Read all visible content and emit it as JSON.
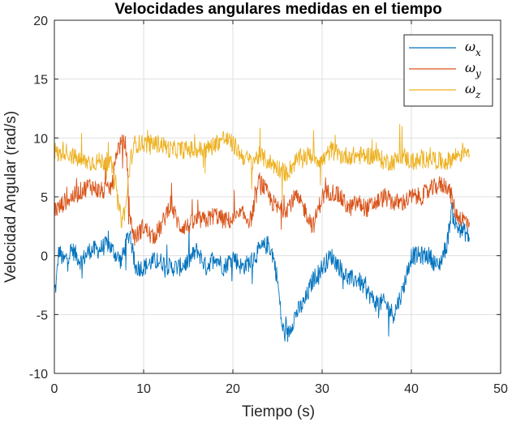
{
  "chart_data": {
    "type": "line",
    "title": "Velocidades angulares medidas en el tiempo",
    "xlabel": "Tiempo (s)",
    "ylabel": "Velocidad Angular (rad/s)",
    "xlim": [
      0,
      50
    ],
    "ylim": [
      -10,
      20
    ],
    "xticks": [
      0,
      10,
      20,
      30,
      40,
      50
    ],
    "yticks": [
      -10,
      -5,
      0,
      5,
      10,
      15,
      20
    ],
    "grid": true,
    "legend_position": "top-right",
    "series": [
      {
        "name": "ωx",
        "base": "ω",
        "sub": "x",
        "color": "#0072BD",
        "x": [
          0,
          0.2,
          0.5,
          1,
          2,
          3,
          4,
          5,
          6,
          6.5,
          7,
          7.5,
          8,
          8.5,
          9,
          10,
          11,
          12,
          13,
          14,
          15,
          16,
          17,
          18,
          19,
          20,
          21,
          22,
          23,
          24,
          24.5,
          25,
          25.5,
          26,
          27,
          28,
          29,
          30,
          31,
          32,
          33,
          34,
          35,
          36,
          37,
          38,
          39,
          40,
          41,
          42,
          43,
          44,
          44.5,
          45,
          46,
          46.5
        ],
        "y": [
          -3,
          -2.5,
          0.5,
          -0.5,
          0.5,
          -0.5,
          0.5,
          0.5,
          1,
          0.5,
          0,
          -0.5,
          1,
          2,
          -1,
          -1,
          -0.5,
          -0.5,
          -1,
          -1,
          -0.5,
          0.5,
          -1,
          0,
          -1,
          0,
          -1,
          -0.5,
          0.5,
          1,
          0,
          -2,
          -6,
          -7,
          -5,
          -4,
          -2,
          -1,
          0,
          -1,
          -2,
          -2,
          -3,
          -4,
          -4,
          -5,
          -3,
          0,
          0,
          0,
          -1,
          1,
          4,
          2.5,
          2,
          1.5
        ]
      },
      {
        "name": "ωy",
        "base": "ω",
        "sub": "y",
        "color": "#D95319",
        "x": [
          0,
          0.5,
          1,
          2,
          3,
          4,
          5,
          6,
          6.5,
          7,
          7.5,
          8,
          8.5,
          9,
          10,
          11,
          12,
          13,
          14,
          15,
          16,
          17,
          18,
          19,
          20,
          21,
          22,
          23,
          24,
          25,
          26,
          27,
          28,
          29,
          30,
          31,
          32,
          33,
          34,
          35,
          36,
          37,
          38,
          39,
          40,
          41,
          42,
          43,
          44,
          44.5,
          45,
          46,
          46.5
        ],
        "y": [
          4,
          4,
          4.5,
          5,
          5.5,
          6,
          5.5,
          5.5,
          6,
          9,
          9.5,
          9.5,
          3,
          1.5,
          2.5,
          1.5,
          2.5,
          4.5,
          2.5,
          2.5,
          3,
          3,
          3.5,
          3,
          3,
          3.5,
          3,
          6.5,
          5,
          4,
          4,
          5,
          4,
          2.5,
          5,
          5.5,
          5,
          4,
          4.5,
          4,
          4.5,
          5,
          4.5,
          4.5,
          5,
          5,
          5.5,
          6,
          6,
          5,
          3.5,
          3,
          3
        ]
      },
      {
        "name": "ωz",
        "base": "ω",
        "sub": "z",
        "color": "#EDB120",
        "x": [
          0,
          0.5,
          1,
          2,
          3,
          4,
          5,
          6,
          6.5,
          7,
          7.5,
          8,
          8.5,
          9,
          10,
          11,
          12,
          13,
          14,
          15,
          16,
          17,
          18,
          19,
          20,
          21,
          22,
          23,
          24,
          25,
          26,
          27,
          28,
          29,
          30,
          31,
          32,
          33,
          34,
          35,
          36,
          37,
          38,
          39,
          40,
          41,
          42,
          43,
          44,
          45,
          46,
          46.5
        ],
        "y": [
          9,
          8.5,
          9,
          8.5,
          8,
          8,
          8,
          8,
          7.5,
          5,
          3,
          4,
          8,
          9.5,
          9.5,
          9.5,
          9.5,
          9,
          9,
          9,
          9,
          9,
          9.5,
          10,
          9.5,
          8.5,
          8,
          8.5,
          8,
          7.5,
          7,
          8,
          8.5,
          8.5,
          8,
          9,
          8.5,
          8.5,
          8.5,
          8.5,
          8.5,
          8,
          8,
          8.5,
          8,
          8,
          8.5,
          8,
          8,
          8.5,
          9,
          9
        ]
      }
    ]
  }
}
